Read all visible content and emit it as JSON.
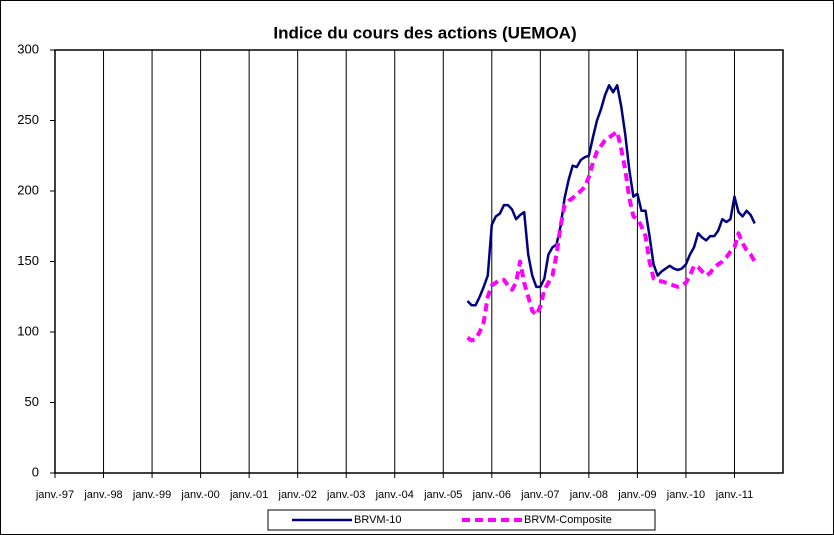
{
  "chart_data": {
    "type": "line",
    "title": "Indice du cours des actions  (UEMOA)",
    "categories": [
      "janv.-97",
      null,
      null,
      null,
      null,
      null,
      null,
      null,
      null,
      null,
      null,
      null,
      "janv.-98",
      null,
      null,
      null,
      null,
      null,
      null,
      null,
      null,
      null,
      null,
      null,
      "janv.-99",
      null,
      null,
      null,
      null,
      null,
      null,
      null,
      null,
      null,
      null,
      null,
      "janv.-00",
      null,
      null,
      null,
      null,
      null,
      null,
      null,
      null,
      null,
      null,
      null,
      "janv.-01",
      null,
      null,
      null,
      null,
      null,
      null,
      null,
      null,
      null,
      null,
      null,
      "janv.-02",
      null,
      null,
      null,
      null,
      null,
      null,
      null,
      null,
      null,
      null,
      null,
      "janv.-03",
      null,
      null,
      null,
      null,
      null,
      null,
      null,
      null,
      null,
      null,
      null,
      "janv.-04",
      null,
      null,
      null,
      null,
      null,
      null,
      null,
      null,
      null,
      null,
      null,
      "janv.-05",
      null,
      null,
      null,
      null,
      null,
      null,
      null,
      null,
      null,
      null,
      null,
      "janv.-06",
      null,
      null,
      null,
      null,
      null,
      null,
      null,
      null,
      null,
      null,
      null,
      "janv.-07",
      null,
      null,
      null,
      null,
      null,
      null,
      null,
      null,
      null,
      null,
      null,
      "janv.-08",
      null,
      null,
      null,
      null,
      null,
      null,
      null,
      null,
      null,
      null,
      null,
      "janv.-09",
      null,
      null,
      null,
      null,
      null,
      null,
      null,
      null,
      null,
      null,
      null,
      "janv.-10",
      null,
      null,
      null,
      null,
      null,
      null,
      null,
      null,
      null,
      null,
      null,
      "janv.-11",
      null,
      null,
      null,
      null,
      null,
      null,
      null,
      null,
      null,
      null,
      null,
      null
    ],
    "series": [
      {
        "name": "BRVM-10",
        "color": "#000080",
        "dash": "solid",
        "values": [
          null,
          null,
          null,
          null,
          null,
          null,
          null,
          null,
          null,
          null,
          null,
          null,
          null,
          null,
          null,
          null,
          null,
          null,
          null,
          null,
          null,
          null,
          null,
          null,
          null,
          null,
          null,
          null,
          null,
          null,
          null,
          null,
          null,
          null,
          null,
          null,
          null,
          null,
          null,
          null,
          null,
          null,
          null,
          null,
          null,
          null,
          null,
          null,
          null,
          null,
          null,
          null,
          null,
          null,
          null,
          null,
          null,
          null,
          null,
          null,
          null,
          null,
          null,
          null,
          null,
          null,
          null,
          null,
          null,
          null,
          null,
          null,
          null,
          null,
          null,
          null,
          null,
          null,
          null,
          null,
          null,
          null,
          null,
          null,
          null,
          null,
          null,
          null,
          null,
          null,
          null,
          null,
          null,
          null,
          null,
          null,
          null,
          null,
          null,
          null,
          null,
          null,
          122,
          119,
          119,
          125,
          132,
          140,
          176,
          182,
          184,
          190,
          190,
          187,
          180,
          183,
          185,
          155,
          140,
          132,
          132,
          138,
          155,
          160,
          162,
          175,
          195,
          208,
          218,
          217,
          222,
          224,
          225,
          238,
          250,
          258,
          268,
          275,
          270,
          275,
          260,
          240,
          215,
          196,
          198,
          186,
          186,
          168,
          148,
          140,
          143,
          145,
          147,
          145,
          144,
          145,
          148,
          155,
          160,
          170,
          167,
          165,
          168,
          168,
          172,
          180,
          178,
          180,
          196,
          185,
          182,
          186,
          183,
          177,
          null,
          null,
          null,
          null,
          null,
          null,
          null
        ]
      },
      {
        "name": "BRVM-Composite",
        "color": "#ff00ff",
        "dash": "dashed",
        "values": [
          null,
          null,
          null,
          null,
          null,
          null,
          null,
          null,
          null,
          null,
          null,
          null,
          null,
          null,
          null,
          null,
          null,
          null,
          null,
          null,
          null,
          null,
          null,
          null,
          null,
          null,
          null,
          null,
          null,
          null,
          null,
          null,
          null,
          null,
          null,
          null,
          null,
          null,
          null,
          null,
          null,
          null,
          null,
          null,
          null,
          null,
          null,
          null,
          null,
          null,
          null,
          null,
          null,
          null,
          null,
          null,
          null,
          null,
          null,
          null,
          null,
          null,
          null,
          null,
          null,
          null,
          null,
          null,
          null,
          null,
          null,
          null,
          null,
          null,
          null,
          null,
          null,
          null,
          null,
          null,
          null,
          null,
          null,
          null,
          null,
          null,
          null,
          null,
          null,
          null,
          null,
          null,
          null,
          null,
          null,
          null,
          null,
          null,
          null,
          null,
          null,
          null,
          96,
          94,
          95,
          100,
          107,
          125,
          133,
          135,
          137,
          137,
          133,
          130,
          135,
          150,
          135,
          125,
          115,
          112,
          118,
          130,
          135,
          140,
          155,
          175,
          190,
          193,
          195,
          198,
          200,
          203,
          210,
          220,
          228,
          232,
          236,
          238,
          240,
          242,
          230,
          215,
          195,
          182,
          180,
          175,
          168,
          150,
          138,
          136,
          136,
          135,
          134,
          133,
          132,
          133,
          135,
          140,
          147,
          146,
          143,
          140,
          142,
          146,
          148,
          150,
          153,
          157,
          160,
          170,
          163,
          158,
          155,
          150,
          null,
          null,
          null,
          null,
          null,
          null,
          null
        ]
      }
    ],
    "ylim": [
      0,
      300
    ],
    "yticks": [
      0,
      50,
      100,
      150,
      200,
      250,
      300
    ],
    "grid": true,
    "legend": "bottom"
  }
}
